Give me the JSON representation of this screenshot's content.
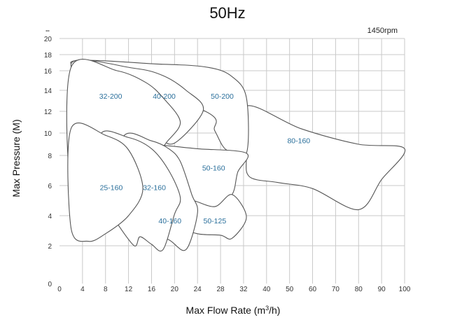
{
  "chart_data": {
    "type": "area",
    "title": "50Hz",
    "annotation": "1450rpm",
    "y_top_mark": "\"'",
    "xlabel": "Max Flow Rate (m",
    "xlabel_sup": "3",
    "xlabel_suffix": "/h)",
    "ylabel": "Max Pressure (M)",
    "x_ticks": [
      "0",
      "4",
      "8",
      "12",
      "16",
      "20",
      "24",
      "28",
      "32",
      "40",
      "50",
      "60",
      "70",
      "80",
      "90",
      "100"
    ],
    "y_ticks": [
      "0",
      "2",
      "4",
      "6",
      "8",
      "10",
      "12",
      "14",
      "16",
      "18",
      "20"
    ],
    "grid": true,
    "regions": [
      {
        "name": "80-160",
        "points": [
          [
            33,
            12.5
          ],
          [
            55,
            10.4
          ],
          [
            80,
            9.0
          ],
          [
            100,
            8.6
          ],
          [
            90,
            6.4
          ],
          [
            80,
            4.4
          ],
          [
            60,
            5.8
          ],
          [
            45,
            6.2
          ],
          [
            34,
            6.6
          ],
          [
            33,
            8.2
          ]
        ]
      },
      {
        "name": "50-200",
        "points": [
          [
            2,
            16.9
          ],
          [
            18,
            16.8
          ],
          [
            26,
            16.4
          ],
          [
            30,
            15.4
          ],
          [
            33,
            13.3
          ],
          [
            33,
            8.2
          ],
          [
            29,
            8.5
          ],
          [
            27,
            10.2
          ],
          [
            25,
            12.1
          ]
        ]
      },
      {
        "name": "40-200",
        "points": [
          [
            2,
            16.8
          ],
          [
            13,
            16.3
          ],
          [
            18,
            15.5
          ],
          [
            22,
            14.0
          ],
          [
            25,
            12.1
          ],
          [
            20,
            9.1
          ],
          [
            17,
            9.6
          ],
          [
            15,
            9.2
          ],
          [
            11,
            9.6
          ]
        ]
      },
      {
        "name": "32-200",
        "points": [
          [
            2,
            16.4
          ],
          [
            10,
            16.0
          ],
          [
            15,
            14.8
          ],
          [
            18,
            13.3
          ],
          [
            21,
            11.0
          ],
          [
            18.5,
            9.1
          ],
          [
            16.5,
            7.8
          ],
          [
            12,
            5.9
          ],
          [
            6,
            5.0
          ],
          [
            2,
            5.6
          ]
        ]
      },
      {
        "name": "50-160",
        "points": [
          [
            12.5,
            9.1
          ],
          [
            18,
            8.9
          ],
          [
            24,
            8.6
          ],
          [
            33,
            8.2
          ],
          [
            31,
            6.9
          ],
          [
            30,
            5.4
          ],
          [
            27,
            4.6
          ],
          [
            23,
            5.0
          ],
          [
            21,
            4.8
          ],
          [
            19,
            5.3
          ],
          [
            14,
            6.2
          ]
        ]
      },
      {
        "name": "50-125",
        "points": [
          [
            23,
            5.0
          ],
          [
            27,
            4.6
          ],
          [
            30,
            5.4
          ],
          [
            33,
            3.9
          ],
          [
            30,
            2.5
          ],
          [
            28,
            2.7
          ],
          [
            24,
            2.8
          ],
          [
            21,
            3.3
          ],
          [
            23,
            4.2
          ]
        ]
      },
      {
        "name": "40-160",
        "points": [
          [
            11,
            9.6
          ],
          [
            16,
            9.3
          ],
          [
            19,
            8.6
          ],
          [
            21,
            7.6
          ],
          [
            23,
            5.4
          ],
          [
            24,
            4.2
          ],
          [
            22,
            1.8
          ],
          [
            19,
            2.4
          ],
          [
            15,
            3.0
          ],
          [
            12,
            3.5
          ],
          [
            10,
            4.4
          ]
        ]
      },
      {
        "name": "32-160",
        "points": [
          [
            7,
            9.7
          ],
          [
            12,
            9.6
          ],
          [
            16,
            8.6
          ],
          [
            19,
            7.0
          ],
          [
            21,
            5.2
          ],
          [
            20,
            4.1
          ],
          [
            18,
            1.8
          ],
          [
            16,
            2.1
          ],
          [
            14,
            2.6
          ],
          [
            13,
            2.0
          ],
          [
            10,
            3.5
          ],
          [
            9,
            4.2
          ]
        ]
      },
      {
        "name": "25-160",
        "points": [
          [
            2,
            10.4
          ],
          [
            8,
            9.8
          ],
          [
            12,
            8.5
          ],
          [
            14.5,
            5.8
          ],
          [
            12,
            4.0
          ],
          [
            8,
            2.8
          ],
          [
            5,
            2.3
          ],
          [
            2,
            3.2
          ]
        ]
      }
    ],
    "labels": [
      {
        "text": "32-200",
        "x": 8.9,
        "y": 13.2
      },
      {
        "text": "40-200",
        "x": 18.2,
        "y": 13.2
      },
      {
        "text": "50-200",
        "x": 28.3,
        "y": 13.2
      },
      {
        "text": "80-160",
        "x": 54,
        "y": 9.1
      },
      {
        "text": "50-160",
        "x": 26.8,
        "y": 7.0
      },
      {
        "text": "25-160",
        "x": 9.0,
        "y": 5.7
      },
      {
        "text": "32-160",
        "x": 16.5,
        "y": 5.7
      },
      {
        "text": "40-160",
        "x": 19.2,
        "y": 3.5
      },
      {
        "text": "50-125",
        "x": 27.0,
        "y": 3.5
      }
    ]
  }
}
